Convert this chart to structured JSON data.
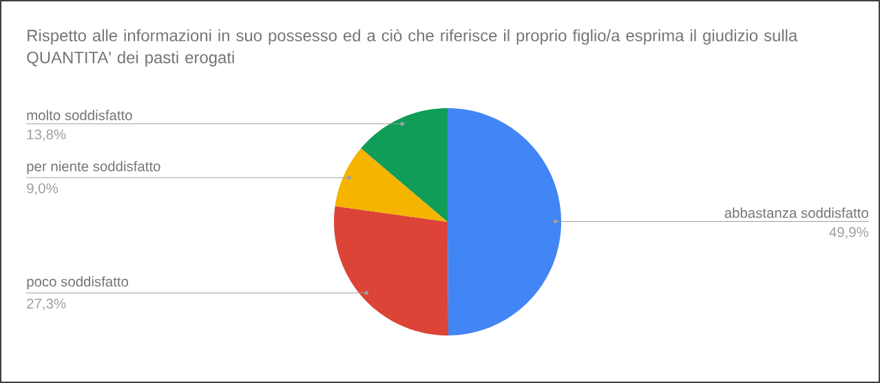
{
  "chart_data": {
    "type": "pie",
    "title": "Rispetto alle informazioni in suo possesso ed a ciò che riferisce il proprio figlio/a esprima il giudizio sulla QUANTITA' dei pasti erogati",
    "categories": [
      "abbastanza soddisfatto",
      "poco soddisfatto",
      "per niente soddisfatto",
      "molto soddisfatto"
    ],
    "values": [
      49.9,
      27.3,
      9.0,
      13.8
    ],
    "colors": [
      "#4285f4",
      "#db4437",
      "#f4b400",
      "#0f9d58"
    ],
    "value_labels": [
      "49,9%",
      "27,3%",
      "9,0%",
      "13,8%"
    ]
  }
}
